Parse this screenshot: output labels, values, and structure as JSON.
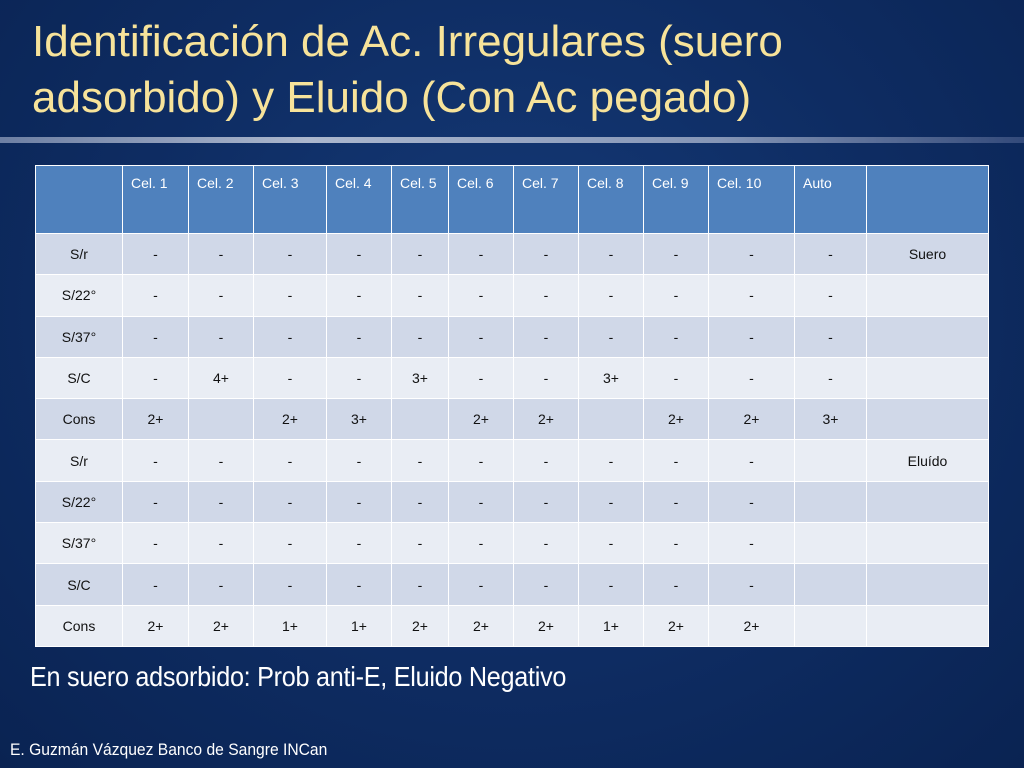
{
  "slide": {
    "title_line1": "Identificación de Ac. Irregulares  (suero",
    "title_line2": "adsorbido) y Eluido (Con Ac pegado)",
    "note": "En suero adsorbido: Prob anti-E, Eluido Negativo",
    "author": "E. Guzmán Vázquez  Banco de Sangre INCan"
  },
  "table": {
    "headers": [
      "",
      "Cel. 1",
      "Cel. 2",
      "Cel. 3",
      "Cel. 4",
      "Cel. 5",
      "Cel. 6",
      "Cel. 7",
      "Cel. 8",
      "Cel. 9",
      "Cel. 10",
      "Auto",
      ""
    ],
    "rows": [
      [
        "S/r",
        "-",
        "-",
        "-",
        "-",
        "-",
        "-",
        "-",
        "-",
        "-",
        "-",
        "-",
        "Suero"
      ],
      [
        "S/22°",
        "-",
        "-",
        "-",
        "-",
        "-",
        "-",
        "-",
        "-",
        "-",
        "-",
        "-",
        ""
      ],
      [
        "S/37°",
        "-",
        "-",
        "-",
        "-",
        "-",
        "-",
        "-",
        "-",
        "-",
        "-",
        "-",
        ""
      ],
      [
        "S/C",
        "-",
        "4+",
        "-",
        "-",
        "3+",
        "-",
        "-",
        "3+",
        "-",
        "-",
        "-",
        ""
      ],
      [
        "Cons",
        "2+",
        "",
        "2+",
        "3+",
        "",
        "2+",
        "2+",
        "",
        "2+",
        "2+",
        "3+",
        ""
      ],
      [
        "S/r",
        "-",
        "-",
        "-",
        "-",
        "-",
        "-",
        "-",
        "-",
        "-",
        "-",
        "",
        "Eluído"
      ],
      [
        "S/22°",
        "-",
        "-",
        "-",
        "-",
        "-",
        "-",
        "-",
        "-",
        "-",
        "-",
        "",
        ""
      ],
      [
        "S/37°",
        "-",
        "-",
        "-",
        "-",
        "-",
        "-",
        "-",
        "-",
        "-",
        "-",
        "",
        ""
      ],
      [
        "S/C",
        "-",
        "-",
        "-",
        "-",
        "-",
        "-",
        "-",
        "-",
        "-",
        "-",
        "",
        ""
      ],
      [
        "Cons",
        "2+",
        "2+",
        "1+",
        "1+",
        "2+",
        "2+",
        "2+",
        "1+",
        "2+",
        "2+",
        "",
        ""
      ]
    ]
  },
  "colors": {
    "background": "#0d2a5e",
    "title_text": "#f7e39a",
    "header_fill": "#4f81bd",
    "row_fill_dark": "#d0d8e8",
    "row_fill_light": "#e9edf4"
  }
}
